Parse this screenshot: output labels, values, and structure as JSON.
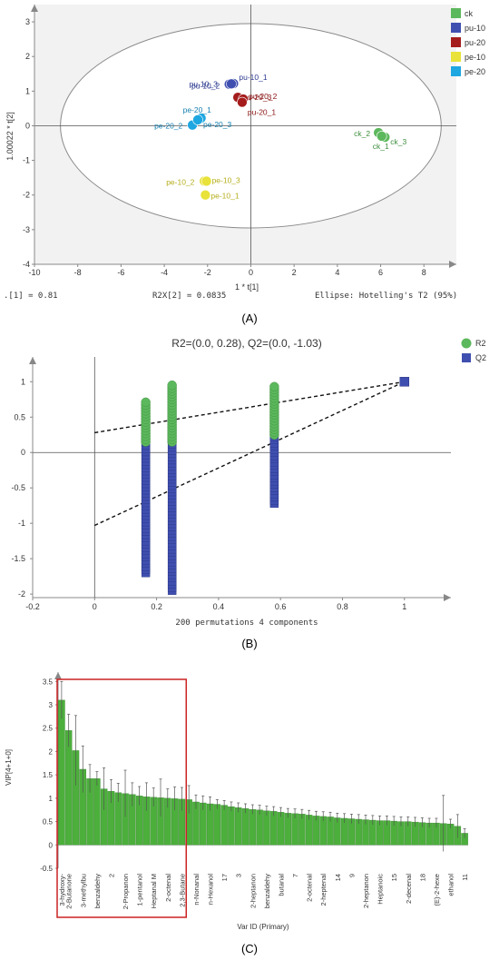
{
  "panels": {
    "A": {
      "label": "(A)",
      "xlabel": "1 * t[1]",
      "ylabel": "1.00022 * t[2]",
      "footer_left": ".[1] = 0.81",
      "footer_mid": "R2X[2] = 0.0835",
      "footer_right": "Ellipse: Hotelling's T2 (95%)"
    },
    "B": {
      "label": "(B)",
      "title": "R2=(0.0, 0.28), Q2=(0.0, -1.03)",
      "xlabel": "200 permutations 4 components"
    },
    "C": {
      "label": "(C)",
      "ylabel": "VIP[4+1+0]",
      "xlabel": "Var ID (Primary)"
    }
  },
  "chart_data": [
    {
      "type": "scatter",
      "xlabel": "1 * t[1]",
      "ylabel": "1.00022 * t[2]",
      "xlim": [
        -10,
        9.5
      ],
      "ylim": [
        -4,
        3.5
      ],
      "xticks": [
        -10,
        -8,
        -6,
        -4,
        -2,
        0,
        2,
        4,
        6,
        8
      ],
      "yticks": [
        -4,
        -3,
        -2,
        -1,
        0,
        1,
        2,
        3
      ],
      "grid": false,
      "legend_position": "right",
      "ellipse": {
        "label": "Hotelling's T2 (95%)",
        "cx": 0,
        "cy": 0,
        "rx": 8.8,
        "ry": 2.95
      },
      "series": [
        {
          "name": "ck",
          "color": "#5cb85c",
          "points": [
            {
              "label": "ck_2",
              "x": 5.9,
              "y": -0.2
            },
            {
              "label": "ck_3",
              "x": 6.2,
              "y": -0.33
            },
            {
              "label": "ck_1",
              "x": 6.05,
              "y": -0.3
            }
          ]
        },
        {
          "name": "pu-10",
          "color": "#3f4fb0",
          "points": [
            {
              "label": "pu-10_3",
              "x": -1.0,
              "y": 1.2
            },
            {
              "label": "pu-10_1",
              "x": -0.8,
              "y": 1.22
            },
            {
              "label": "pu-10_2",
              "x": -0.9,
              "y": 1.21
            }
          ]
        },
        {
          "name": "pu-20",
          "color": "#a51c1c",
          "points": [
            {
              "label": "pu-20_3",
              "x": -0.6,
              "y": 0.82
            },
            {
              "label": "pu-20_2",
              "x": -0.35,
              "y": 0.77
            },
            {
              "label": "pu-20_1",
              "x": -0.4,
              "y": 0.68
            }
          ]
        },
        {
          "name": "pe-10",
          "color": "#e8e23a",
          "points": [
            {
              "label": "pe-10_2",
              "x": -2.15,
              "y": -1.6
            },
            {
              "label": "pe-10_3",
              "x": -2.05,
              "y": -1.6
            },
            {
              "label": "pe-10_1",
              "x": -2.1,
              "y": -2.0
            }
          ]
        },
        {
          "name": "pe-20",
          "color": "#1ea7e1",
          "points": [
            {
              "label": "pe-20_1",
              "x": -2.3,
              "y": 0.22
            },
            {
              "label": "pe-20_2",
              "x": -2.7,
              "y": 0.02
            },
            {
              "label": "pe-20_3",
              "x": -2.45,
              "y": 0.17
            }
          ]
        }
      ]
    },
    {
      "type": "scatter",
      "title": "R2=(0.0, 0.28), Q2=(0.0, -1.03)",
      "xlabel": "200 permutations 4 components",
      "xlim": [
        -0.2,
        1.15
      ],
      "ylim": [
        -2,
        1.3
      ],
      "xticks": [
        -0.2,
        0,
        0.2,
        0.4,
        0.6,
        0.8,
        1
      ],
      "yticks": [
        -2,
        -1.5,
        -1,
        -0.5,
        0,
        0.5,
        1
      ],
      "legend_position": "top-right",
      "series": [
        {
          "name": "R2",
          "color": "#5cb85c",
          "marker": "circle",
          "columns": [
            {
              "x": 0.165,
              "min": 0.15,
              "max": 0.72
            },
            {
              "x": 0.25,
              "min": 0.15,
              "max": 0.97
            },
            {
              "x": 0.58,
              "min": 0.25,
              "max": 0.93
            }
          ],
          "original": {
            "x": 1.0,
            "y": 1.0
          }
        },
        {
          "name": "Q2",
          "color": "#3f4fb0",
          "marker": "square",
          "columns": [
            {
              "x": 0.165,
              "min": -1.7,
              "max": 0.2
            },
            {
              "x": 0.25,
              "min": -1.95,
              "max": 0.9
            },
            {
              "x": 0.58,
              "min": -0.72,
              "max": 0.5
            }
          ],
          "original": {
            "x": 1.0,
            "y": 1.0
          }
        }
      ],
      "regression_lines": [
        {
          "name": "R2",
          "intercept": 0.28,
          "x_end": 1.0,
          "y_end": 1.0
        },
        {
          "name": "Q2",
          "intercept": -1.03,
          "x_end": 1.0,
          "y_end": 1.0
        }
      ]
    },
    {
      "type": "bar",
      "ylabel": "VIP[4+1+0]",
      "xlabel": "Var ID (Primary)",
      "ylim": [
        -0.5,
        3.7
      ],
      "yticks": [
        -0.5,
        0,
        0.5,
        1,
        1.5,
        2,
        2.5,
        3,
        3.5
      ],
      "bar_color": "#4caf3c",
      "highlight_box": {
        "first_index": 0,
        "last_index": 17,
        "color": "#cc2222"
      },
      "tick_labels": [
        {
          "index": 0,
          "label": "3-hydroxy-"
        },
        {
          "index": 1,
          "label": "2-Butanone"
        },
        {
          "index": 3,
          "label": "3-methylbu"
        },
        {
          "index": 5,
          "label": "benzaldehy"
        },
        {
          "index": 7,
          "label": "2"
        },
        {
          "index": 9,
          "label": "2-Propanon"
        },
        {
          "index": 11,
          "label": "1-pentanol"
        },
        {
          "index": 13,
          "label": "Heptanal M"
        },
        {
          "index": 15,
          "label": "2-octenal"
        },
        {
          "index": 17,
          "label": "2,3-Butane"
        },
        {
          "index": 19,
          "label": "n-Nonanal"
        },
        {
          "index": 21,
          "label": "n-Hexanol"
        },
        {
          "index": 23,
          "label": "17"
        },
        {
          "index": 25,
          "label": "3"
        },
        {
          "index": 27,
          "label": "2-heptanon"
        },
        {
          "index": 29,
          "label": "benzaldehy"
        },
        {
          "index": 31,
          "label": "butanal"
        },
        {
          "index": 33,
          "label": "7"
        },
        {
          "index": 35,
          "label": "2-octenal"
        },
        {
          "index": 37,
          "label": "2-heptenal"
        },
        {
          "index": 39,
          "label": "14"
        },
        {
          "index": 41,
          "label": "9"
        },
        {
          "index": 43,
          "label": "2-heptanon"
        },
        {
          "index": 45,
          "label": "Heptanoic"
        },
        {
          "index": 47,
          "label": "15"
        },
        {
          "index": 49,
          "label": "2-decenal"
        },
        {
          "index": 51,
          "label": "18"
        },
        {
          "index": 53,
          "label": "(E)-2-hexe"
        },
        {
          "index": 55,
          "label": "ethanol"
        },
        {
          "index": 57,
          "label": "11"
        }
      ],
      "values": [
        3.1,
        2.45,
        2.02,
        1.62,
        1.42,
        1.42,
        1.2,
        1.15,
        1.12,
        1.1,
        1.08,
        1.05,
        1.03,
        1.02,
        1.01,
        1.0,
        0.99,
        0.98,
        0.97,
        0.92,
        0.9,
        0.88,
        0.87,
        0.85,
        0.82,
        0.8,
        0.78,
        0.76,
        0.75,
        0.73,
        0.72,
        0.7,
        0.68,
        0.67,
        0.66,
        0.64,
        0.62,
        0.61,
        0.6,
        0.58,
        0.57,
        0.56,
        0.55,
        0.54,
        0.53,
        0.52,
        0.52,
        0.51,
        0.5,
        0.5,
        0.49,
        0.48,
        0.47,
        0.47,
        0.46,
        0.45,
        0.4,
        0.25
      ],
      "errors": [
        0.4,
        0.35,
        0.75,
        0.5,
        0.3,
        0.15,
        0.45,
        0.25,
        0.2,
        0.5,
        0.25,
        0.2,
        0.3,
        0.2,
        0.4,
        0.2,
        0.25,
        0.25,
        0.3,
        0.15,
        0.15,
        0.15,
        0.1,
        0.1,
        0.1,
        0.1,
        0.1,
        0.1,
        0.1,
        0.1,
        0.1,
        0.1,
        0.1,
        0.1,
        0.1,
        0.1,
        0.1,
        0.1,
        0.1,
        0.1,
        0.1,
        0.1,
        0.1,
        0.1,
        0.1,
        0.1,
        0.1,
        0.1,
        0.1,
        0.1,
        0.1,
        0.1,
        0.1,
        0.1,
        0.6,
        0.1,
        0.25,
        0.1
      ]
    }
  ]
}
